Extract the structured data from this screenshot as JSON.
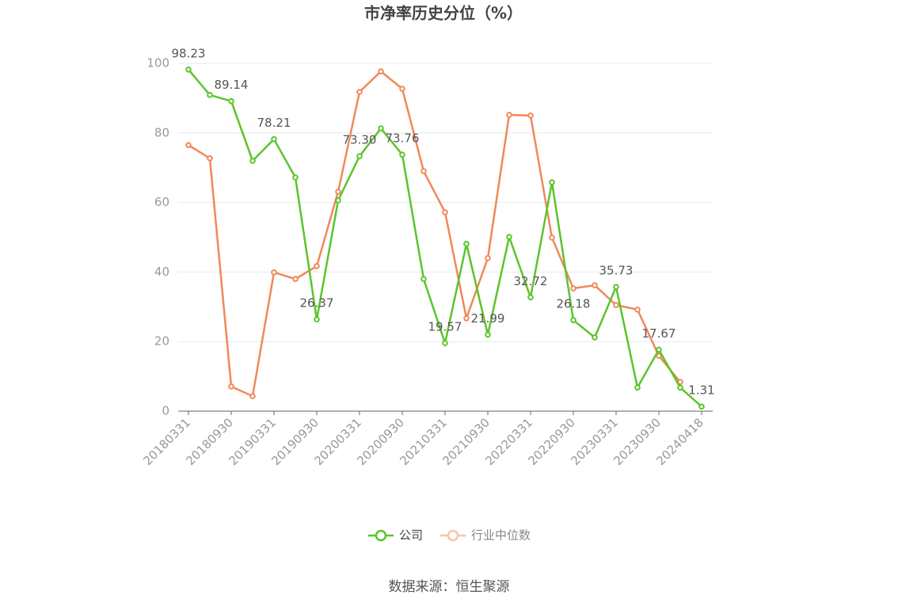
{
  "chart_data": {
    "type": "line",
    "title": "市净率历史分位（%）",
    "categories": [
      "20180331",
      null,
      "20180930",
      null,
      "20190331",
      null,
      "20190930",
      null,
      "20200331",
      null,
      "20200930",
      null,
      "20210331",
      null,
      "20210930",
      null,
      "20220331",
      null,
      "20220930",
      null,
      "20230331",
      null,
      "20230930",
      null,
      "20240418"
    ],
    "series": [
      {
        "name": "公司",
        "color": "#5cc42c",
        "values": [
          98.23,
          90.9,
          89.14,
          72.0,
          78.21,
          67.2,
          26.37,
          60.6,
          73.3,
          81.3,
          73.76,
          38.0,
          19.57,
          48.1,
          21.99,
          50.1,
          32.72,
          65.8,
          26.18,
          21.2,
          35.73,
          6.8,
          17.67,
          6.8,
          1.31
        ],
        "value_labels": [
          "98.23",
          null,
          "89.14",
          null,
          "78.21",
          null,
          "26.37",
          null,
          "73.30",
          null,
          "73.76",
          null,
          "19.57",
          null,
          "21.99",
          null,
          "32.72",
          null,
          "26.18",
          null,
          "35.73",
          null,
          "17.67",
          null,
          "1.31"
        ]
      },
      {
        "name": "行业中位数",
        "color": "#f0885a",
        "values": [
          76.5,
          72.7,
          7.1,
          4.3,
          39.9,
          38.0,
          41.7,
          63.1,
          91.8,
          97.7,
          92.7,
          69.0,
          57.2,
          26.7,
          44.0,
          85.2,
          85.0,
          49.9,
          35.3,
          36.2,
          30.5,
          29.2,
          15.9,
          8.4,
          null
        ]
      }
    ],
    "ylim": [
      0,
      100
    ],
    "yticks": [
      0,
      20,
      40,
      60,
      80,
      100
    ],
    "grid": true,
    "source": "数据来源：恒生聚源"
  }
}
